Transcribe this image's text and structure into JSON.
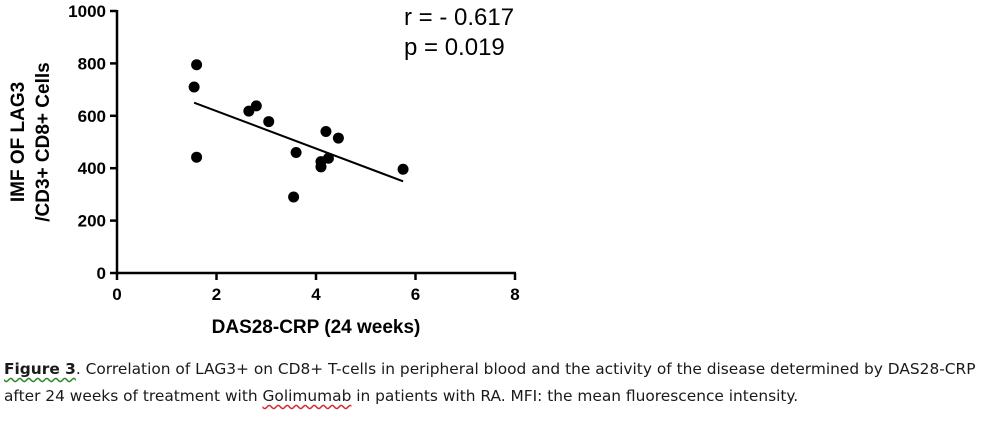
{
  "chart_data": {
    "type": "scatter",
    "xlabel": "DAS28-CRP (24 weeks)",
    "ylabel_lines": [
      "IMF OF LAG3",
      "/CD3+ CD8+ Cells"
    ],
    "xlim": [
      0,
      8
    ],
    "ylim": [
      0,
      1000
    ],
    "x_ticks": [
      0,
      2,
      4,
      6,
      8
    ],
    "y_ticks": [
      0,
      200,
      400,
      600,
      800,
      1000
    ],
    "points": [
      {
        "x": 1.55,
        "y": 710
      },
      {
        "x": 1.6,
        "y": 795
      },
      {
        "x": 1.6,
        "y": 442
      },
      {
        "x": 2.65,
        "y": 618
      },
      {
        "x": 2.8,
        "y": 638
      },
      {
        "x": 3.05,
        "y": 578
      },
      {
        "x": 3.6,
        "y": 460
      },
      {
        "x": 3.55,
        "y": 290
      },
      {
        "x": 4.1,
        "y": 425
      },
      {
        "x": 4.1,
        "y": 405
      },
      {
        "x": 4.25,
        "y": 438
      },
      {
        "x": 4.2,
        "y": 540
      },
      {
        "x": 4.45,
        "y": 515
      },
      {
        "x": 5.75,
        "y": 396
      }
    ],
    "fit_line": {
      "x": [
        1.55,
        5.75
      ],
      "y": [
        650,
        350
      ]
    },
    "annotations": [
      "r = - 0.617",
      "p = 0.019"
    ]
  },
  "caption": {
    "figure_label": "Figure 3",
    "part1": ". Correlation of LAG3+ on CD8+ T-cells in peripheral blood and the activity of the disease determined by DAS28-CRP after 24 weeks of treatment with ",
    "drug": "Golimumab",
    "part2": " in patients with RA. MFI: the mean fluorescence intensity."
  }
}
